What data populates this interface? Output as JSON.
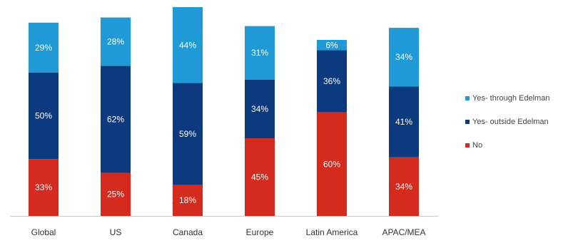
{
  "chart_data": {
    "type": "bar",
    "stacked": true,
    "categories": [
      "Global",
      "US",
      "Canada",
      "Europe",
      "Latin America",
      "APAC/MEA"
    ],
    "series": [
      {
        "name": "No",
        "color": "#d52b1e",
        "values": [
          33,
          25,
          18,
          45,
          60,
          34
        ],
        "labels": [
          "33%",
          "25%",
          "18%",
          "45%",
          "60%",
          "34%"
        ]
      },
      {
        "name": "Yes- outside Edelman",
        "color": "#0d3a7e",
        "values": [
          50,
          62,
          59,
          34,
          36,
          41
        ],
        "labels": [
          "50%",
          "62%",
          "59%",
          "34%",
          "36%",
          "41%"
        ]
      },
      {
        "name": "Yes- through Edelman",
        "color": "#1f9ad6",
        "values": [
          29,
          28,
          44,
          31,
          6,
          34
        ],
        "labels": [
          "29%",
          "28%",
          "44%",
          "31%",
          "6%",
          "34%"
        ]
      }
    ],
    "legend_order": [
      "Yes- through Edelman",
      "Yes- outside Edelman",
      "No"
    ],
    "legend_position": "right",
    "grid": false,
    "y_axis_visible": false,
    "ylim": [
      0,
      121
    ]
  }
}
